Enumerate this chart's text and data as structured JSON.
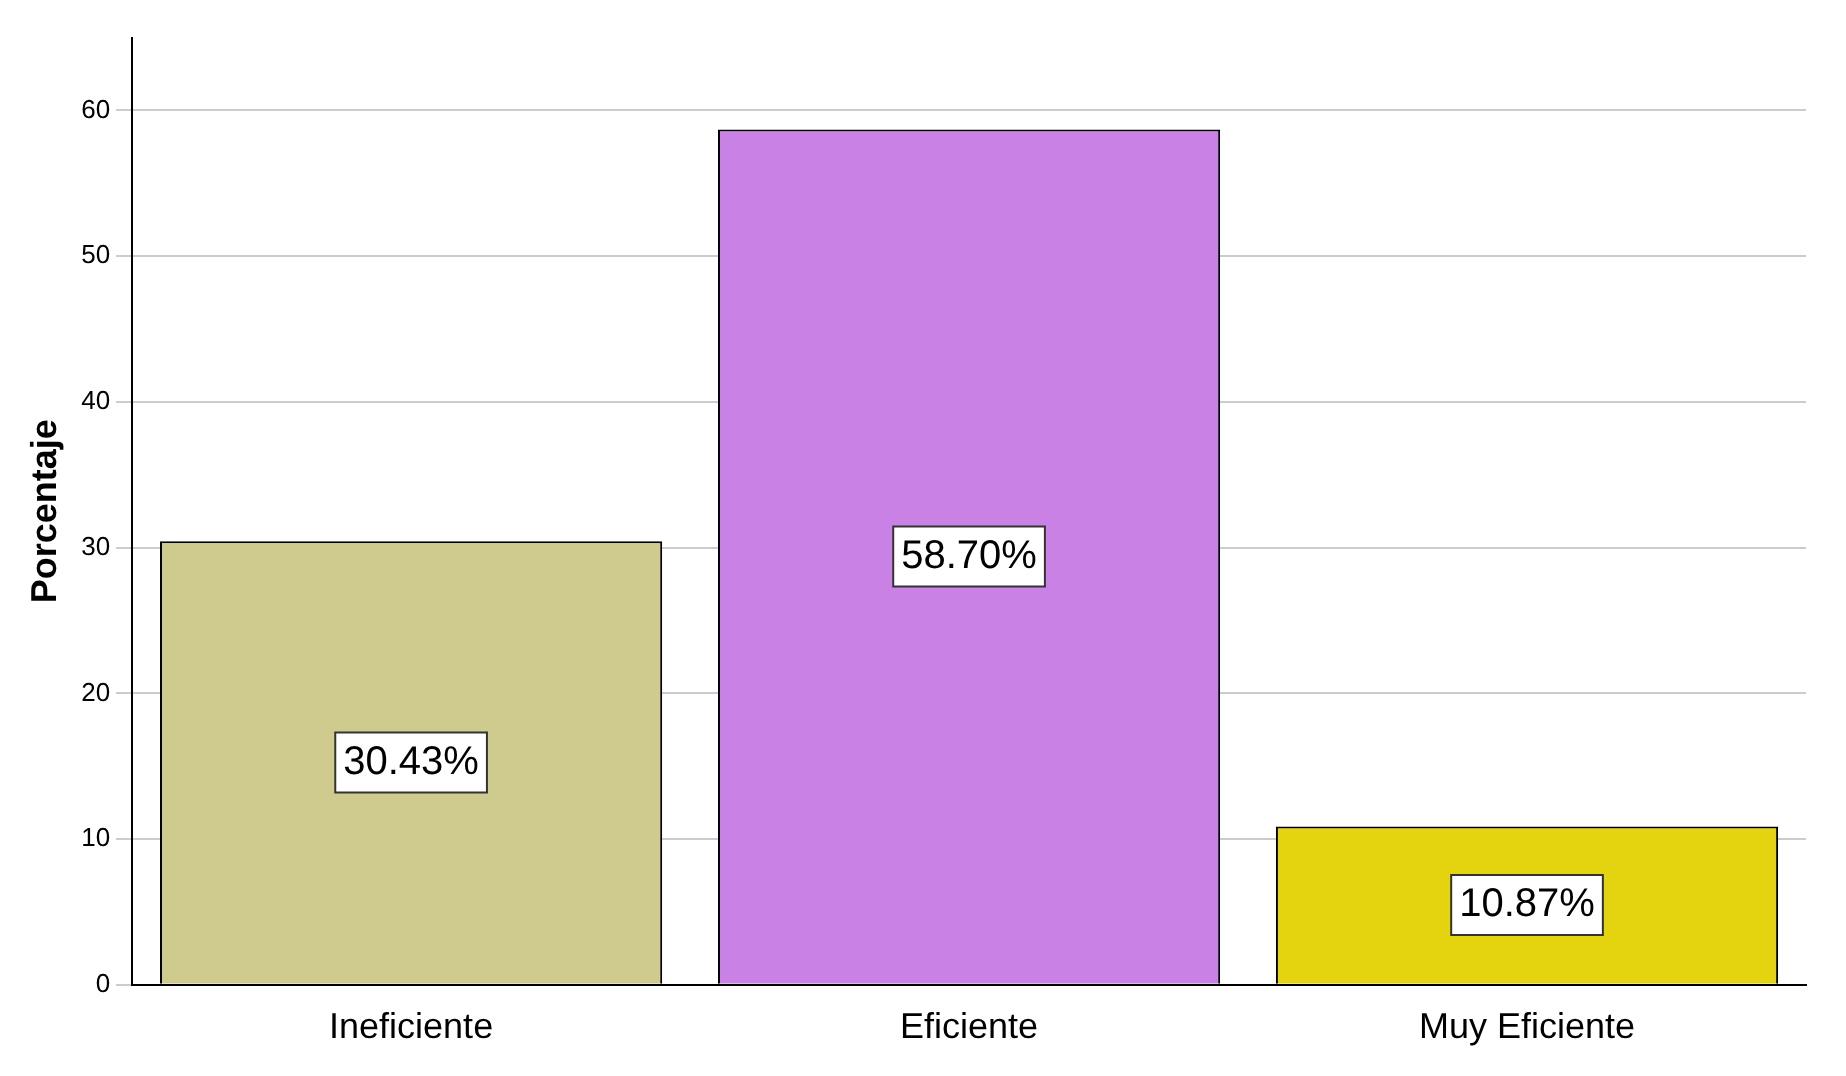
{
  "chart_data": {
    "type": "bar",
    "ylabel": "Porcentaje",
    "categories": [
      "Ineficiente",
      "Eficiente",
      "Muy Eficiente"
    ],
    "values": [
      30.43,
      58.7,
      10.87
    ],
    "value_labels": [
      "30.43%",
      "58.70%",
      "10.87%"
    ],
    "colors": [
      "#cfca8e",
      "#c981e6",
      "#e3d40f"
    ],
    "ylim": [
      0,
      65
    ],
    "yticks": [
      0,
      10,
      20,
      30,
      40,
      50,
      60
    ],
    "grid": "y",
    "legend": false
  }
}
